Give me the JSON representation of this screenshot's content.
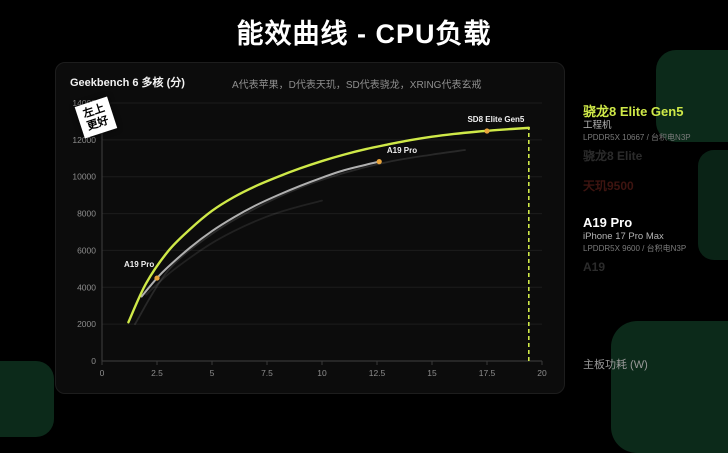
{
  "page": {
    "title": "能效曲线 - CPU负载"
  },
  "panel": {
    "badge_line1": "左上",
    "badge_line2": "更好"
  },
  "legend": {
    "entries": [
      {
        "name": "骁龙8 Elite Gen5",
        "sub1": "工程机",
        "sub2": "LPDDR5X 10667 / 台积电N3P",
        "color": "#cfe948",
        "dim": false
      },
      {
        "name": "骁龙8 Elite",
        "color": "#9a9a9a",
        "dim": true
      },
      {
        "name": "天玑9500",
        "color": "#b03a2e",
        "dim": true
      },
      {
        "name": "A19 Pro",
        "sub1": "iPhone 17 Pro Max",
        "sub2": "LPDDR5X 9600 / 台积电N3P",
        "color": "#ffffff",
        "dim": false
      },
      {
        "name": "A19",
        "color": "#9a9a9a",
        "dim": true
      }
    ]
  },
  "chart_data": {
    "type": "line",
    "title": "能效曲线 - CPU负载",
    "ylabel": "Geekbench 6 多核 (分)",
    "xlabel": "主板功耗 (W)",
    "note": "A代表苹果，D代表天玑，SD代表骁龙，XRING代表玄戒",
    "xlim": [
      0,
      20
    ],
    "ylim": [
      0,
      14000
    ],
    "xticks": [
      0,
      2.5,
      5,
      7.5,
      10,
      12.5,
      15,
      17.5,
      20
    ],
    "yticks": [
      0,
      2000,
      4000,
      6000,
      8000,
      10000,
      12000,
      14000
    ],
    "grid": "horizontal",
    "legend_position": "right",
    "dot_color": "#e8a43c",
    "series": [
      {
        "name": "骁龙8 Elite",
        "color": "#9a9a9a",
        "width": 1.8,
        "opacity": 0.2,
        "points": [
          [
            1.5,
            2000
          ],
          [
            3,
            4900
          ],
          [
            5,
            6900
          ],
          [
            7,
            8300
          ],
          [
            9,
            9400
          ],
          [
            11,
            10200
          ],
          [
            13,
            10800
          ],
          [
            15,
            11200
          ],
          [
            16.5,
            11450
          ]
        ]
      },
      {
        "name": "A19",
        "color": "#9a9a9a",
        "width": 1.8,
        "opacity": 0.15,
        "points": [
          [
            2,
            3600
          ],
          [
            3,
            4700
          ],
          [
            4,
            5600
          ],
          [
            5,
            6400
          ],
          [
            6,
            7050
          ],
          [
            7,
            7600
          ],
          [
            8,
            8050
          ],
          [
            9,
            8400
          ],
          [
            10,
            8700
          ]
        ]
      },
      {
        "name": "A19 Pro",
        "color": "#b0b0b0",
        "width": 2,
        "opacity": 1,
        "points": [
          [
            1.8,
            3500
          ],
          [
            2.5,
            4500
          ],
          [
            3,
            5100
          ],
          [
            4,
            6150
          ],
          [
            5,
            7050
          ],
          [
            6,
            7800
          ],
          [
            7,
            8450
          ],
          [
            8,
            9000
          ],
          [
            9,
            9500
          ],
          [
            10,
            9950
          ],
          [
            11,
            10350
          ],
          [
            12,
            10650
          ],
          [
            12.6,
            10820
          ]
        ]
      },
      {
        "name": "骁龙8 Elite Gen5",
        "color": "#cfe948",
        "width": 2.4,
        "opacity": 1,
        "points": [
          [
            1.2,
            2100
          ],
          [
            2,
            4200
          ],
          [
            3,
            5950
          ],
          [
            4,
            7150
          ],
          [
            5,
            8150
          ],
          [
            6,
            8900
          ],
          [
            7,
            9500
          ],
          [
            8,
            10000
          ],
          [
            9,
            10450
          ],
          [
            10,
            10850
          ],
          [
            11,
            11200
          ],
          [
            12,
            11500
          ],
          [
            13,
            11750
          ],
          [
            14,
            11980
          ],
          [
            15,
            12170
          ],
          [
            16,
            12320
          ],
          [
            17,
            12440
          ],
          [
            18,
            12540
          ],
          [
            19.4,
            12650
          ]
        ]
      }
    ],
    "cutoff_line": {
      "x": 19.4,
      "y_top": 12650,
      "color": "#cfe948"
    },
    "annotations": [
      {
        "label": "SD8 Elite Gen5",
        "dot": [
          17.5,
          12480
        ],
        "text": [
          19.2,
          12980
        ],
        "anchor": "end"
      },
      {
        "label": "A19 Pro",
        "dot": [
          12.6,
          10820
        ],
        "text": [
          12.95,
          11300
        ],
        "anchor": "start"
      },
      {
        "label": "A19 Pro",
        "dot": [
          2.5,
          4500
        ],
        "text": [
          1.0,
          5100
        ],
        "anchor": "start"
      }
    ]
  }
}
